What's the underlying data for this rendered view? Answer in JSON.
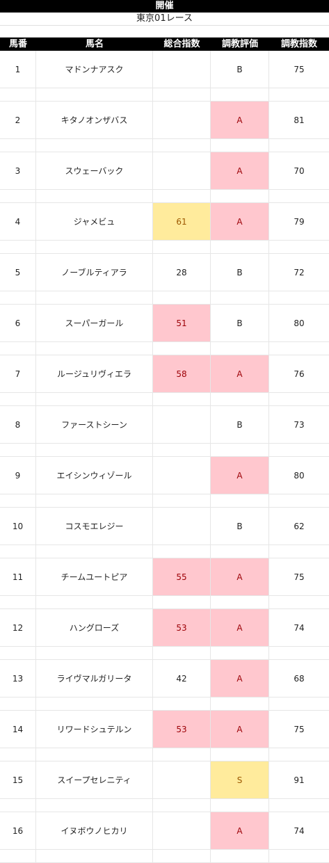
{
  "sheet": {
    "title": "開催",
    "subtitle": "東京01レース",
    "headers": [
      "馬番",
      "馬名",
      "総合指数",
      "調教評価",
      "調教指数"
    ],
    "colors": {
      "pink": "#ffc7ce",
      "yellow": "#ffeb9c",
      "header": "#000000"
    },
    "rows": [
      {
        "num": "1",
        "name": "マドンナアスク",
        "sogo": "",
        "sogo_hl": "",
        "eval": "B",
        "eval_hl": "",
        "idx": "75"
      },
      {
        "num": "2",
        "name": "キタノオンザバス",
        "sogo": "",
        "sogo_hl": "",
        "eval": "A",
        "eval_hl": "pink",
        "idx": "81"
      },
      {
        "num": "3",
        "name": "スウェーバック",
        "sogo": "",
        "sogo_hl": "",
        "eval": "A",
        "eval_hl": "pink",
        "idx": "70"
      },
      {
        "num": "4",
        "name": "ジャメビュ",
        "sogo": "61",
        "sogo_hl": "yellow",
        "eval": "A",
        "eval_hl": "pink",
        "idx": "79"
      },
      {
        "num": "5",
        "name": "ノーブルティアラ",
        "sogo": "28",
        "sogo_hl": "",
        "eval": "B",
        "eval_hl": "",
        "idx": "72"
      },
      {
        "num": "6",
        "name": "スーパーガール",
        "sogo": "51",
        "sogo_hl": "pink",
        "eval": "B",
        "eval_hl": "",
        "idx": "80"
      },
      {
        "num": "7",
        "name": "ルージュリヴィエラ",
        "sogo": "58",
        "sogo_hl": "pink",
        "eval": "A",
        "eval_hl": "pink",
        "idx": "76"
      },
      {
        "num": "8",
        "name": "ファーストシーン",
        "sogo": "",
        "sogo_hl": "",
        "eval": "B",
        "eval_hl": "",
        "idx": "73"
      },
      {
        "num": "9",
        "name": "エイシンウィゾール",
        "sogo": "",
        "sogo_hl": "",
        "eval": "A",
        "eval_hl": "pink",
        "idx": "80"
      },
      {
        "num": "10",
        "name": "コスモエレジー",
        "sogo": "",
        "sogo_hl": "",
        "eval": "B",
        "eval_hl": "",
        "idx": "62"
      },
      {
        "num": "11",
        "name": "チームユートピア",
        "sogo": "55",
        "sogo_hl": "pink",
        "eval": "A",
        "eval_hl": "pink",
        "idx": "75"
      },
      {
        "num": "12",
        "name": "ハングローズ",
        "sogo": "53",
        "sogo_hl": "pink",
        "eval": "A",
        "eval_hl": "pink",
        "idx": "74"
      },
      {
        "num": "13",
        "name": "ライヴマルガリータ",
        "sogo": "42",
        "sogo_hl": "",
        "eval": "A",
        "eval_hl": "pink",
        "idx": "68"
      },
      {
        "num": "14",
        "name": "リワードシュテルン",
        "sogo": "53",
        "sogo_hl": "pink",
        "eval": "A",
        "eval_hl": "pink",
        "idx": "75"
      },
      {
        "num": "15",
        "name": "スイープセレニティ",
        "sogo": "",
        "sogo_hl": "",
        "eval": "S",
        "eval_hl": "yellow",
        "idx": "91"
      },
      {
        "num": "16",
        "name": "イヌボウノヒカリ",
        "sogo": "",
        "sogo_hl": "",
        "eval": "A",
        "eval_hl": "pink",
        "idx": "74"
      }
    ]
  }
}
